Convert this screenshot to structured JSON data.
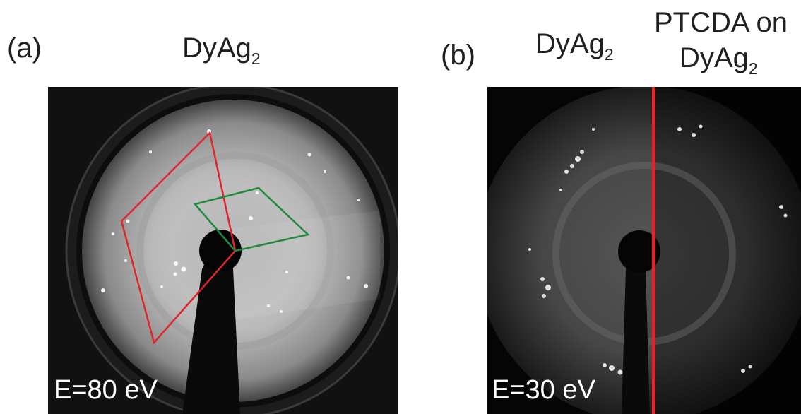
{
  "panel_a": {
    "letter": "(a)",
    "title_base": "DyAg",
    "title_sub": "2",
    "energy": "E=80 eV",
    "overlay_colors": {
      "large_cell": "#e0262b",
      "small_cell": "#1f8a3c"
    }
  },
  "panel_b": {
    "letter": "(b)",
    "left_title_base": "DyAg",
    "left_title_sub": "2",
    "right_title_line1": "PTCDA on",
    "right_title_base": "DyAg",
    "right_title_sub": "2",
    "energy": "E=30 eV",
    "divider_color": "#e0262b"
  }
}
